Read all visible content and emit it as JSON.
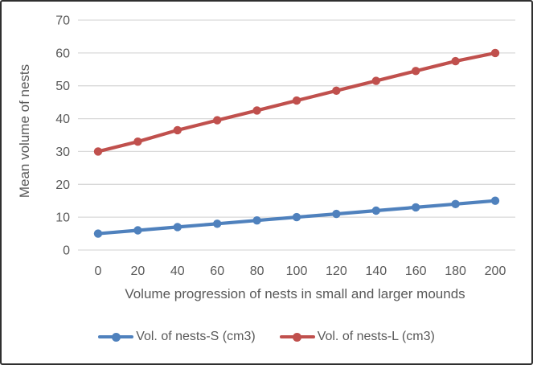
{
  "chart_data": {
    "type": "line",
    "x": [
      0,
      20,
      40,
      60,
      80,
      100,
      120,
      140,
      160,
      180,
      200
    ],
    "series": [
      {
        "name": "Vol. of nests-S (cm3)",
        "color": "#4F81BD",
        "values": [
          5,
          6,
          7,
          8,
          9,
          10,
          11,
          12,
          13,
          14,
          15
        ]
      },
      {
        "name": "Vol. of nests-L (cm3)",
        "color": "#C0504D",
        "values": [
          30,
          33,
          36.5,
          39.5,
          42.5,
          45.5,
          48.5,
          51.5,
          54.5,
          57.5,
          60
        ]
      }
    ],
    "title": "",
    "xlabel": "Volume progression of nests in small and larger mounds",
    "ylabel": "Mean volume of nests",
    "ylim": [
      0,
      70
    ],
    "ytick_step": 10,
    "xticks": [
      "0",
      "20",
      "40",
      "60",
      "80",
      "100",
      "120",
      "140",
      "160",
      "180",
      "200"
    ],
    "yticks": [
      "0",
      "10",
      "20",
      "30",
      "40",
      "50",
      "60",
      "70"
    ],
    "grid": "horizontal",
    "gridline_color": "#D9D9D9",
    "text_color": "#595959",
    "legend_position": "bottom"
  }
}
